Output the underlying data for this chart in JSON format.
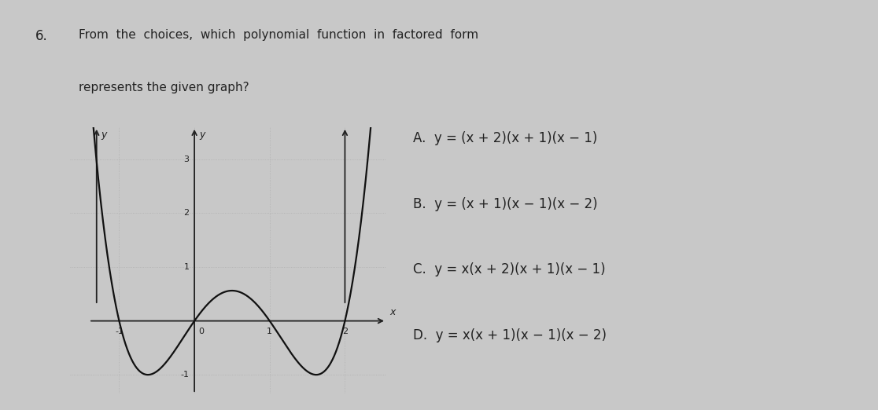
{
  "question_number": "6.",
  "question_line1": "From  the  choices,  which  polynomial  function  in  factored  form",
  "question_line2": "represents the given graph?",
  "choice_A": "A.  y = (x + 2)(x + 1)(x − 1)",
  "choice_B": "B.  y = (x + 1)(x − 1)(x − 2)",
  "choice_C": "C.  y = x(x + 2)(x + 1)(x − 1)",
  "choice_D": "D.  y = x(x + 1)(x − 1)(x − 2)",
  "graph_xlim": [
    -1.65,
    2.55
  ],
  "graph_ylim": [
    -1.35,
    3.6
  ],
  "graph_xticks": [
    -1,
    1,
    2
  ],
  "graph_yticks": [
    -1,
    1,
    2,
    3
  ],
  "bg_color": "#c8c8c8",
  "paper_color": "#d6d6d6",
  "text_color": "#222222",
  "curve_color": "#111111",
  "grid_color": "#b0b0b0",
  "axis_color": "#222222"
}
